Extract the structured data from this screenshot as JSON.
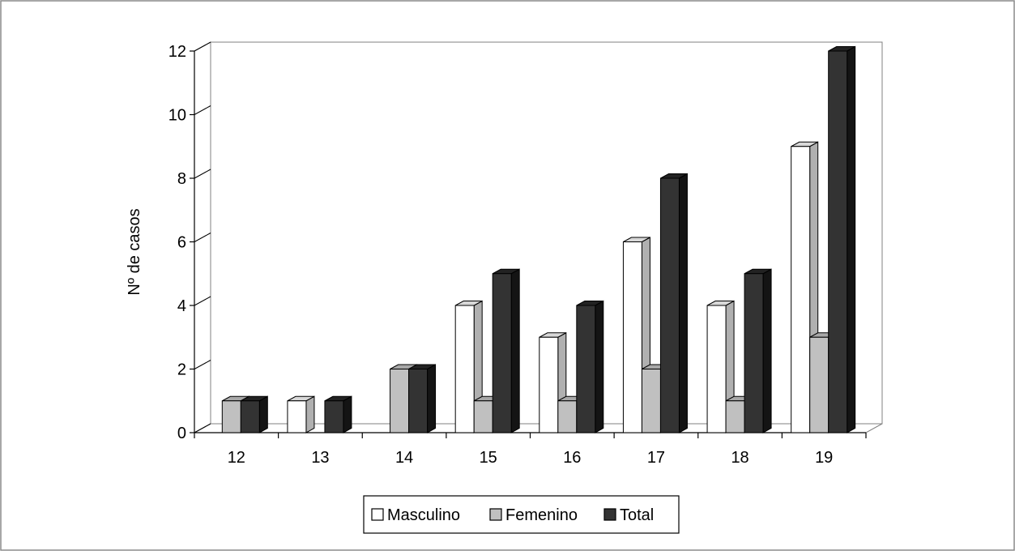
{
  "chart_data": {
    "type": "bar",
    "title": "",
    "xlabel": "",
    "ylabel": "Nº de casos",
    "ylim": [
      0,
      12
    ],
    "y_ticks": [
      0,
      2,
      4,
      6,
      8,
      10,
      12
    ],
    "categories": [
      "12",
      "13",
      "14",
      "15",
      "16",
      "17",
      "18",
      "19"
    ],
    "series": [
      {
        "name": "Masculino",
        "color": "#ffffff",
        "values": [
          0,
          1,
          0,
          4,
          3,
          6,
          4,
          9
        ]
      },
      {
        "name": "Femenino",
        "color": "#c0c0c0",
        "values": [
          1,
          0,
          2,
          1,
          1,
          2,
          1,
          3
        ]
      },
      {
        "name": "Total",
        "color": "#333333",
        "values": [
          1,
          1,
          2,
          5,
          4,
          8,
          5,
          12
        ]
      }
    ],
    "grid": false,
    "legend_position": "bottom",
    "style": "3d-clustered-columns"
  }
}
